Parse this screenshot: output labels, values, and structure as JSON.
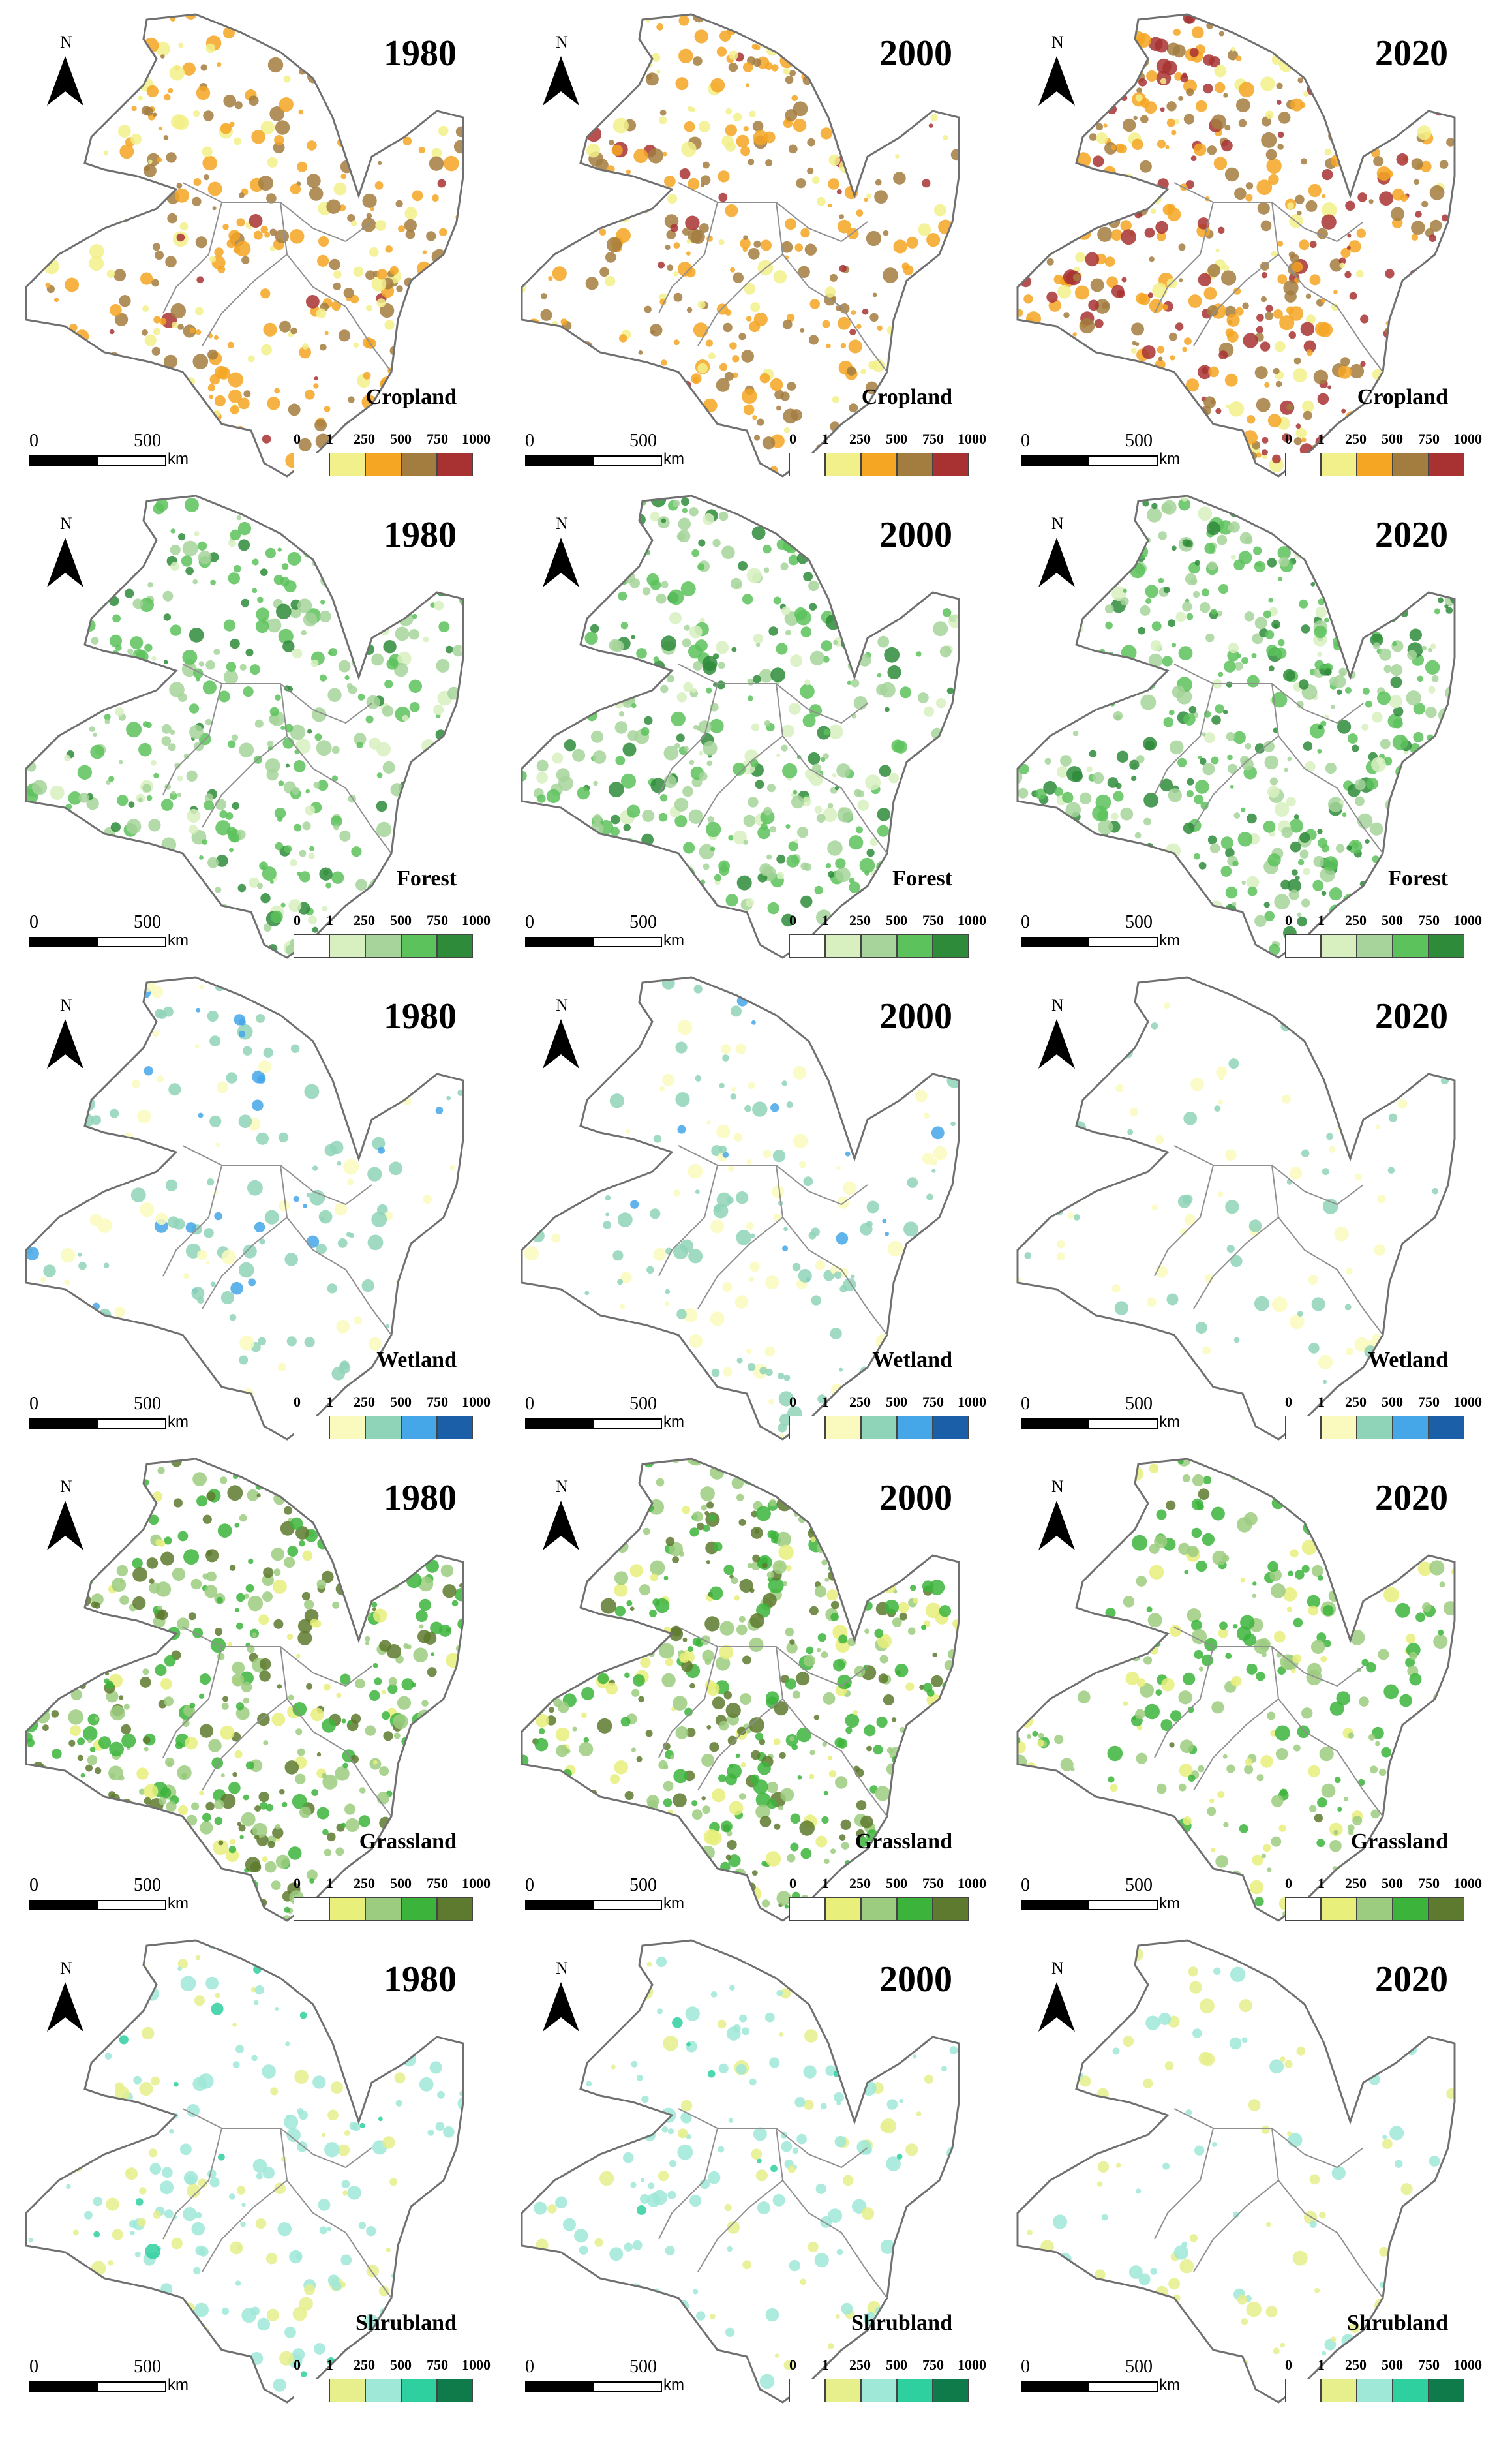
{
  "figure": {
    "units": {
      "scale_zero": "0",
      "scale_mid": "500",
      "scale_unit": "km",
      "north": "N"
    },
    "legend_ticks": [
      "0",
      "1",
      "250",
      "500",
      "750",
      "1000"
    ],
    "years": [
      "1980",
      "2000",
      "2020"
    ],
    "rows": [
      {
        "label": "Cropland",
        "colors": [
          "#ffffff",
          "#f2f08a",
          "#f5a623",
          "#a37c40",
          "#a83232"
        ],
        "intensity": [
          0.55,
          0.6,
          0.8
        ]
      },
      {
        "label": "Forest",
        "colors": [
          "#ffffff",
          "#d8f0c0",
          "#a6d49a",
          "#5cc25c",
          "#2e8b3a"
        ],
        "intensity": [
          0.7,
          0.72,
          0.8
        ]
      },
      {
        "label": "Wetland",
        "colors": [
          "#ffffff",
          "#fafabe",
          "#8fd4b8",
          "#45a6e8",
          "#1a5fa8"
        ],
        "intensity": [
          0.35,
          0.3,
          0.15
        ]
      },
      {
        "label": "Grassland",
        "colors": [
          "#ffffff",
          "#e8ef7a",
          "#9ccc80",
          "#3cb43c",
          "#5e7a2e"
        ],
        "intensity": [
          0.85,
          0.82,
          0.55
        ]
      },
      {
        "label": "Shrubland",
        "colors": [
          "#ffffff",
          "#e6ef8c",
          "#9fe8d8",
          "#2fd0a0",
          "#0f7a4a"
        ],
        "intensity": [
          0.35,
          0.3,
          0.15
        ]
      }
    ]
  }
}
